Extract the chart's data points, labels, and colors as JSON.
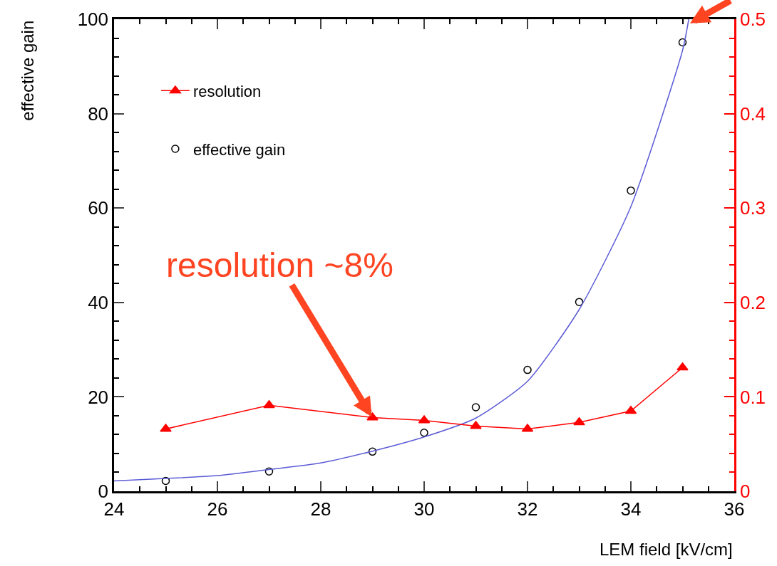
{
  "chart_data": {
    "type": "scatter",
    "xlabel": "LEM field [kV/cm]",
    "ylabel": "effective gain",
    "xlim": [
      24,
      36
    ],
    "xticks": [
      24,
      26,
      28,
      30,
      32,
      34,
      36
    ],
    "ylim": [
      0,
      100
    ],
    "yticks": [
      0,
      20,
      40,
      60,
      80,
      100
    ],
    "y2lim": [
      0,
      0.5
    ],
    "y2ticks": [
      0,
      0.1,
      0.2,
      0.3,
      0.4,
      0.5
    ],
    "legend": "top left",
    "annotations": [
      {
        "text": "resolution ~8%",
        "x": 29,
        "y": 15.5
      }
    ],
    "series": [
      {
        "name": "resolution",
        "type": "line",
        "axis": "y2",
        "color": "#ff0000",
        "marker": "triangle",
        "x": [
          25,
          27,
          29,
          30,
          31,
          32,
          33,
          34,
          35
        ],
        "values": [
          0.066,
          0.091,
          0.078,
          0.075,
          0.069,
          0.066,
          0.073,
          0.085,
          0.131
        ]
      },
      {
        "name": "effective gain",
        "color": "#000000",
        "marker": "circle",
        "x": [
          25,
          27,
          29,
          30,
          31,
          32,
          33,
          34,
          35
        ],
        "values": [
          2.2,
          4.2,
          8.4,
          12.4,
          17.8,
          25.7,
          40.1,
          63.7,
          95.1
        ]
      },
      {
        "type": "line",
        "color": "#5b5bd6",
        "marker": "none",
        "x": [
          24,
          25,
          26,
          27,
          28,
          29,
          30,
          31,
          32,
          33,
          34,
          35,
          35.12
        ],
        "values": [
          2.2,
          2.7,
          3.3,
          4.6,
          6.0,
          8.5,
          11.5,
          15.5,
          23.3,
          38.5,
          60.3,
          93.4,
          100
        ]
      }
    ]
  }
}
